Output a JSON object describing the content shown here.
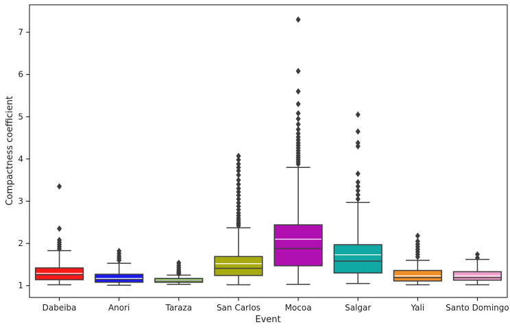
{
  "chart_data": {
    "type": "box",
    "xlabel": "Event",
    "ylabel": "Compactness coefficient",
    "ylim": [
      0.72,
      7.65
    ],
    "yticks": [
      1,
      2,
      3,
      4,
      5,
      6,
      7
    ],
    "grid": false,
    "categories": [
      "Dabeiba",
      "Anori",
      "Taraza",
      "San Carlos",
      "Mocoa",
      "Salgar",
      "Yali",
      "Santo Domingo"
    ],
    "colors": [
      "#ff1a1a",
      "#1a1aee",
      "#64a02a",
      "#a8aa12",
      "#b010b0",
      "#12a8a4",
      "#f08e2a",
      "#f0a0cc"
    ],
    "boxes": [
      {
        "whislo": 1.02,
        "q1": 1.14,
        "med": 1.26,
        "mean": 1.29,
        "q3": 1.42,
        "whishi": 1.83,
        "fliers": [
          1.87,
          1.92,
          1.97,
          2.02,
          2.08,
          2.35,
          3.35
        ]
      },
      {
        "whislo": 1.01,
        "q1": 1.08,
        "med": 1.15,
        "mean": 1.17,
        "q3": 1.27,
        "whishi": 1.53,
        "fliers": [
          1.6,
          1.65,
          1.7,
          1.76,
          1.82
        ]
      },
      {
        "whislo": 1.03,
        "q1": 1.08,
        "med": 1.12,
        "mean": 1.13,
        "q3": 1.17,
        "whishi": 1.25,
        "fliers": [
          1.28,
          1.31,
          1.34,
          1.38,
          1.43,
          1.48,
          1.54
        ]
      },
      {
        "whislo": 1.02,
        "q1": 1.24,
        "med": 1.41,
        "mean": 1.52,
        "q3": 1.69,
        "whishi": 2.37,
        "fliers": [
          2.42,
          2.46,
          2.5,
          2.55,
          2.6,
          2.66,
          2.72,
          2.8,
          2.88,
          2.96,
          3.05,
          3.14,
          3.22,
          3.3,
          3.4,
          3.5,
          3.62,
          3.72,
          3.8,
          3.88,
          3.98,
          4.07
        ]
      },
      {
        "whislo": 1.03,
        "q1": 1.47,
        "med": 1.88,
        "mean": 2.1,
        "q3": 2.44,
        "whishi": 3.8,
        "fliers": [
          3.88,
          3.93,
          3.98,
          4.03,
          4.08,
          4.14,
          4.2,
          4.26,
          4.32,
          4.38,
          4.45,
          4.52,
          4.6,
          4.7,
          4.82,
          4.95,
          5.08,
          5.3,
          5.6,
          6.08,
          7.3
        ]
      },
      {
        "whislo": 1.05,
        "q1": 1.3,
        "med": 1.58,
        "mean": 1.73,
        "q3": 1.97,
        "whishi": 2.97,
        "fliers": [
          3.05,
          3.15,
          3.25,
          3.35,
          3.45,
          3.65,
          4.3,
          4.38,
          4.65,
          5.05
        ]
      },
      {
        "whislo": 1.02,
        "q1": 1.11,
        "med": 1.19,
        "mean": 1.23,
        "q3": 1.36,
        "whishi": 1.6,
        "fliers": [
          1.68,
          1.74,
          1.8,
          1.86,
          1.92,
          1.98,
          2.05,
          2.18
        ]
      },
      {
        "whislo": 1.02,
        "q1": 1.13,
        "med": 1.19,
        "mean": 1.23,
        "q3": 1.33,
        "whishi": 1.62,
        "fliers": [
          1.66,
          1.74
        ]
      }
    ]
  }
}
